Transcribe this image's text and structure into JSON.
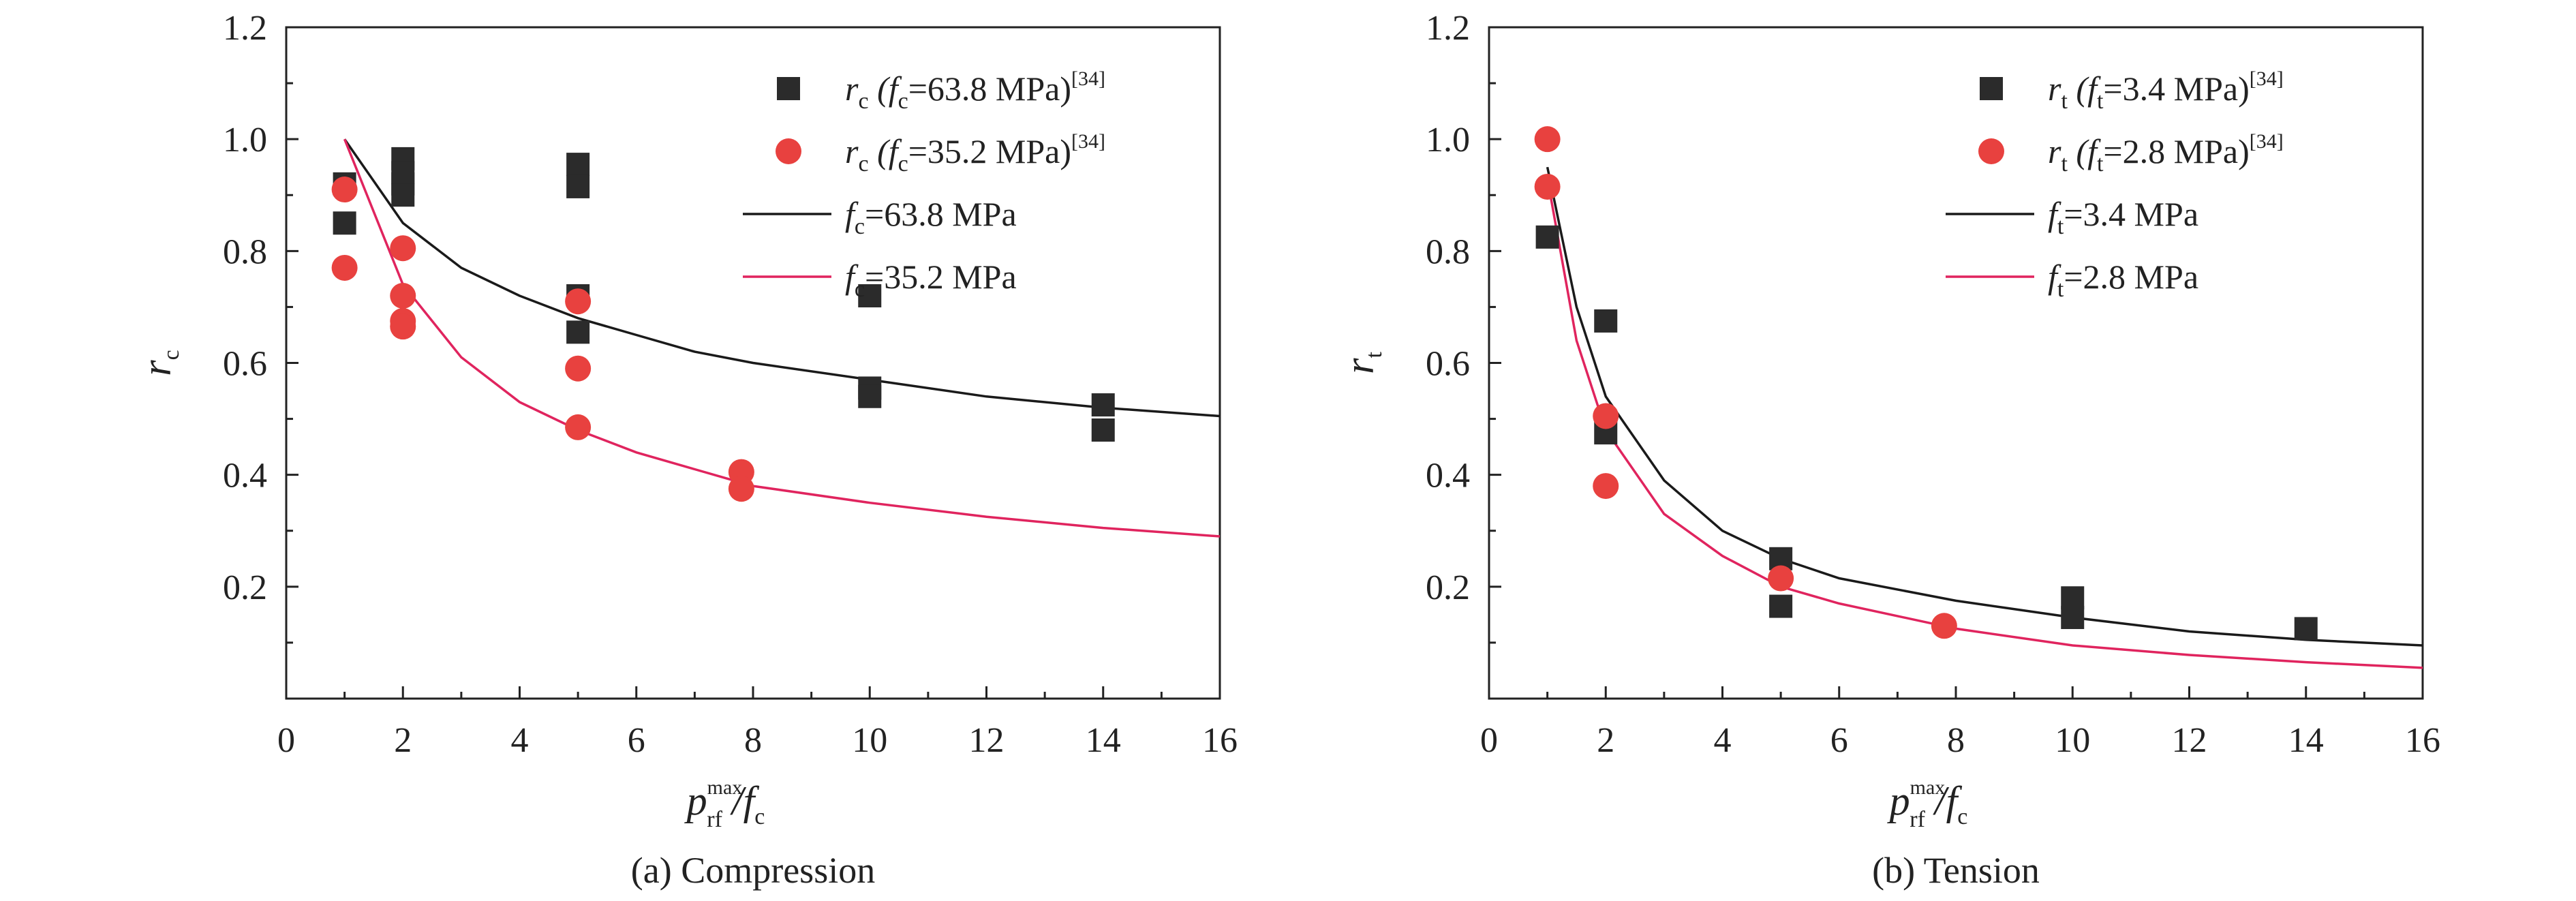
{
  "chart_data": [
    {
      "type": "scatter",
      "panel_caption": "(a) Compression",
      "xlim": [
        0,
        16
      ],
      "ylim": [
        0,
        1.2
      ],
      "x_ticks": [
        "0",
        "2",
        "4",
        "6",
        "8",
        "10",
        "12",
        "14",
        "16"
      ],
      "y_ticks": [
        "0.2",
        "0.4",
        "0.6",
        "0.8",
        "1.0",
        "1.2"
      ],
      "ylabel": {
        "main": "r",
        "sub": "c"
      },
      "xlabel": {
        "main": "p",
        "sup": "max",
        "sub": "rf",
        "rest": "/f",
        "rest_sub": "c"
      },
      "series": [
        {
          "name": "rc (fc=63.8 MPa)[34]",
          "marker": "square",
          "color": "#2b2b2b",
          "legend": {
            "main": "r",
            "sub": "c",
            "open": " (f",
            "sub2": "c",
            "rest": "=63.8 MPa)",
            "sup": "[34]"
          },
          "points": [
            [
              1,
              0.92
            ],
            [
              1,
              0.85
            ],
            [
              2,
              0.965
            ],
            [
              2,
              0.94
            ],
            [
              2,
              0.92
            ],
            [
              2,
              0.9
            ],
            [
              5,
              0.955
            ],
            [
              5,
              0.915
            ],
            [
              5,
              0.72
            ],
            [
              5,
              0.655
            ],
            [
              10,
              0.72
            ],
            [
              10,
              0.555
            ],
            [
              10,
              0.54
            ],
            [
              14,
              0.525
            ],
            [
              14,
              0.48
            ]
          ]
        },
        {
          "name": "rc (fc=35.2 MPa)[34]",
          "marker": "circle",
          "color": "#e8413f",
          "legend": {
            "main": "r",
            "sub": "c",
            "open": " (f",
            "sub2": "c",
            "rest": "=35.2 MPa)",
            "sup": "[34]"
          },
          "points": [
            [
              1,
              0.91
            ],
            [
              1,
              0.77
            ],
            [
              2,
              0.805
            ],
            [
              2,
              0.72
            ],
            [
              2,
              0.675
            ],
            [
              2,
              0.665
            ],
            [
              5,
              0.71
            ],
            [
              5,
              0.59
            ],
            [
              5,
              0.485
            ],
            [
              7.8,
              0.405
            ],
            [
              7.8,
              0.375
            ]
          ]
        },
        {
          "name": "fc=63.8 MPa",
          "line": true,
          "color": "#1a1a1a",
          "legend": {
            "main": "f",
            "sub": "c",
            "rest": "=63.8 MPa"
          },
          "points": [
            [
              1,
              1.0
            ],
            [
              2,
              0.85
            ],
            [
              3,
              0.77
            ],
            [
              4,
              0.72
            ],
            [
              5,
              0.68
            ],
            [
              6,
              0.65
            ],
            [
              7,
              0.62
            ],
            [
              8,
              0.6
            ],
            [
              10,
              0.57
            ],
            [
              12,
              0.54
            ],
            [
              14,
              0.52
            ],
            [
              16,
              0.505
            ]
          ]
        },
        {
          "name": "fc=35.2 MPa",
          "line": true,
          "color": "#e0245e",
          "legend": {
            "main": "f",
            "sub": "c",
            "rest": "=35.2 MPa"
          },
          "points": [
            [
              1,
              1.0
            ],
            [
              2,
              0.74
            ],
            [
              3,
              0.61
            ],
            [
              4,
              0.53
            ],
            [
              5,
              0.48
            ],
            [
              6,
              0.44
            ],
            [
              7,
              0.41
            ],
            [
              8,
              0.38
            ],
            [
              10,
              0.35
            ],
            [
              12,
              0.325
            ],
            [
              14,
              0.305
            ],
            [
              16,
              0.29
            ]
          ]
        }
      ]
    },
    {
      "type": "scatter",
      "panel_caption": "(b) Tension",
      "xlim": [
        0,
        16
      ],
      "ylim": [
        0,
        1.2
      ],
      "x_ticks": [
        "0",
        "2",
        "4",
        "6",
        "8",
        "10",
        "12",
        "14",
        "16"
      ],
      "y_ticks": [
        "0.2",
        "0.4",
        "0.6",
        "0.8",
        "1.0",
        "1.2"
      ],
      "ylabel": {
        "main": "r",
        "sub": "t"
      },
      "xlabel": {
        "main": "p",
        "sup": "max",
        "sub": "rf",
        "rest": "/f",
        "rest_sub": "c"
      },
      "series": [
        {
          "name": "rt (ft=3.4 MPa)[34]",
          "marker": "square",
          "color": "#2b2b2b",
          "legend": {
            "main": "r",
            "sub": "t",
            "open": " (f",
            "sub2": "t",
            "rest": "=3.4 MPa)",
            "sup": "[34]"
          },
          "points": [
            [
              1,
              0.825
            ],
            [
              2,
              0.675
            ],
            [
              2,
              0.475
            ],
            [
              5,
              0.25
            ],
            [
              5,
              0.165
            ],
            [
              10,
              0.18
            ],
            [
              10,
              0.145
            ],
            [
              14,
              0.125
            ]
          ]
        },
        {
          "name": "rt (ft=2.8 MPa)[34]",
          "marker": "circle",
          "color": "#e8413f",
          "legend": {
            "main": "r",
            "sub": "t",
            "open": " (f",
            "sub2": "t",
            "rest": "=2.8 MPa)",
            "sup": "[34]"
          },
          "points": [
            [
              1,
              1.0
            ],
            [
              1,
              0.915
            ],
            [
              2,
              0.505
            ],
            [
              2,
              0.38
            ],
            [
              5,
              0.215
            ],
            [
              7.8,
              0.13
            ]
          ]
        },
        {
          "name": "ft=3.4 MPa",
          "line": true,
          "color": "#1a1a1a",
          "legend": {
            "main": "f",
            "sub": "t",
            "rest": "=3.4 MPa"
          },
          "points": [
            [
              1,
              0.95
            ],
            [
              1.5,
              0.7
            ],
            [
              2,
              0.54
            ],
            [
              3,
              0.39
            ],
            [
              4,
              0.3
            ],
            [
              5,
              0.25
            ],
            [
              6,
              0.215
            ],
            [
              8,
              0.175
            ],
            [
              10,
              0.145
            ],
            [
              12,
              0.12
            ],
            [
              14,
              0.105
            ],
            [
              16,
              0.095
            ]
          ]
        },
        {
          "name": "ft=2.8 MPa",
          "line": true,
          "color": "#e0245e",
          "legend": {
            "main": "f",
            "sub": "t",
            "rest": "=2.8 MPa"
          },
          "points": [
            [
              1,
              0.93
            ],
            [
              1.5,
              0.64
            ],
            [
              2,
              0.48
            ],
            [
              3,
              0.33
            ],
            [
              4,
              0.255
            ],
            [
              5,
              0.2
            ],
            [
              6,
              0.17
            ],
            [
              8,
              0.125
            ],
            [
              10,
              0.095
            ],
            [
              12,
              0.078
            ],
            [
              14,
              0.065
            ],
            [
              16,
              0.055
            ]
          ]
        }
      ]
    }
  ]
}
